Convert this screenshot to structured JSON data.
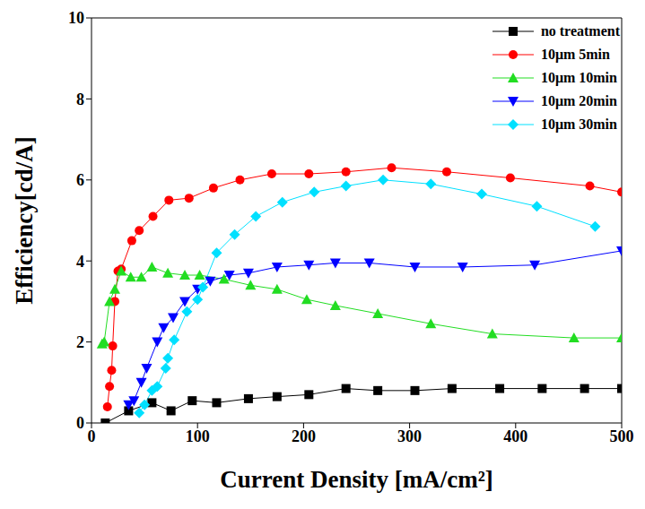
{
  "chart_data": {
    "type": "line",
    "x_label": "Current Density [mA/cm²]",
    "y_label": "Efficiency[cd/A]",
    "xlim": [
      0,
      500
    ],
    "xticks": [
      0,
      100,
      200,
      300,
      400,
      500
    ],
    "ylim": [
      0,
      10
    ],
    "yticks": [
      0,
      2,
      4,
      6,
      8,
      10
    ],
    "grid": false,
    "legend": "upper right",
    "series": [
      {
        "name": "no treatment",
        "color": "#000000",
        "marker": "square",
        "x": [
          13,
          35,
          57,
          75,
          95,
          118,
          148,
          175,
          205,
          240,
          270,
          305,
          340,
          385,
          425,
          465,
          500
        ],
        "values": [
          0,
          0.3,
          0.5,
          0.3,
          0.55,
          0.5,
          0.6,
          0.65,
          0.7,
          0.85,
          0.8,
          0.8,
          0.85,
          0.85,
          0.85,
          0.85,
          0.85
        ]
      },
      {
        "name": "10μm 5min",
        "color": "#ff0000",
        "marker": "circle",
        "x": [
          15,
          17,
          19,
          20,
          22,
          25,
          28,
          38,
          45,
          58,
          73,
          92,
          115,
          140,
          170,
          205,
          240,
          283,
          335,
          395,
          470,
          500
        ],
        "values": [
          0.4,
          0.9,
          1.3,
          1.9,
          3.0,
          3.75,
          3.8,
          4.5,
          4.75,
          5.1,
          5.5,
          5.55,
          5.8,
          6.0,
          6.15,
          6.15,
          6.2,
          6.3,
          6.2,
          6.05,
          5.85,
          5.7
        ]
      },
      {
        "name": "10μm 10min",
        "color": "#22dd22",
        "marker": "triangle",
        "x": [
          10,
          12,
          17,
          22,
          28,
          37,
          47,
          57,
          72,
          88,
          102,
          125,
          150,
          175,
          203,
          230,
          270,
          320,
          378,
          455,
          500
        ],
        "values": [
          1.95,
          2.0,
          3.0,
          3.3,
          3.75,
          3.6,
          3.6,
          3.85,
          3.7,
          3.65,
          3.65,
          3.55,
          3.4,
          3.3,
          3.05,
          2.9,
          2.7,
          2.45,
          2.2,
          2.1,
          2.1
        ]
      },
      {
        "name": "10μm 20min",
        "color": "#0000ff",
        "marker": "triangle-down",
        "x": [
          35,
          40,
          47,
          52,
          62,
          68,
          77,
          88,
          100,
          112,
          130,
          148,
          175,
          205,
          230,
          262,
          305,
          350,
          418,
          500
        ],
        "values": [
          0.45,
          0.55,
          1.0,
          1.35,
          2.0,
          2.35,
          2.6,
          3.0,
          3.3,
          3.5,
          3.65,
          3.7,
          3.85,
          3.9,
          3.95,
          3.95,
          3.85,
          3.85,
          3.9,
          4.25
        ]
      },
      {
        "name": "10μm 30min",
        "color": "#00e0ff",
        "marker": "diamond",
        "x": [
          45,
          50,
          57,
          62,
          70,
          72,
          78,
          90,
          100,
          105,
          118,
          135,
          155,
          180,
          210,
          240,
          275,
          320,
          368,
          420,
          475
        ],
        "values": [
          0.25,
          0.45,
          0.8,
          0.9,
          1.35,
          1.6,
          2.05,
          2.75,
          3.05,
          3.35,
          4.2,
          4.65,
          5.1,
          5.45,
          5.7,
          5.85,
          6.0,
          5.9,
          5.65,
          5.35,
          4.85
        ]
      }
    ]
  }
}
